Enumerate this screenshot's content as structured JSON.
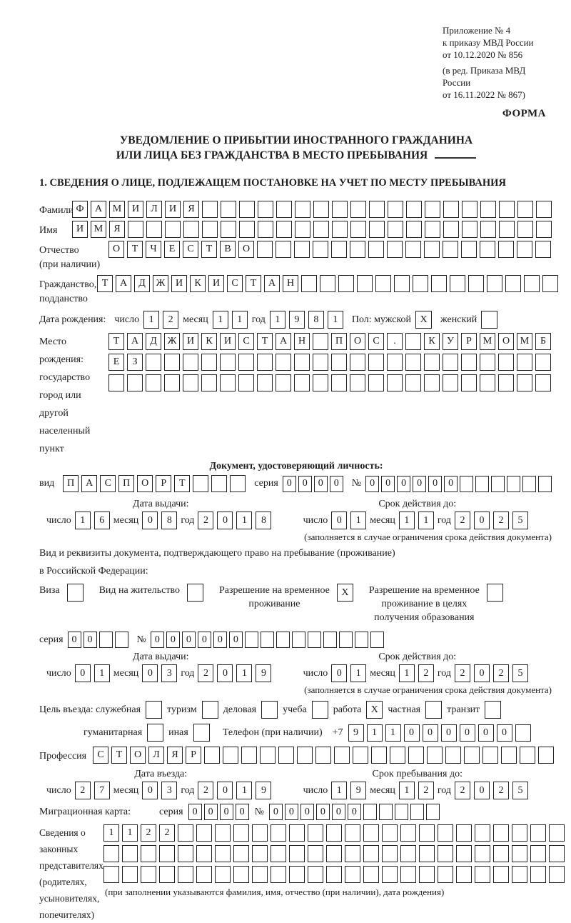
{
  "header": {
    "line1": "Приложение № 4",
    "line2": "к приказу МВД России",
    "line3": "от 10.12.2020 № 856",
    "line4": "(в ред. Приказа МВД России",
    "line5": "от 16.11.2022 № 867)",
    "form_label": "ФОРМА"
  },
  "title": {
    "line1": "УВЕДОМЛЕНИЕ О ПРИБЫТИИ ИНОСТРАННОГО ГРАЖДАНИНА",
    "line2": "ИЛИ ЛИЦА БЕЗ ГРАЖДАНСТВА В МЕСТО ПРЕБЫВАНИЯ"
  },
  "section1": {
    "heading": "1. СВЕДЕНИЯ О ЛИЦЕ, ПОДЛЕЖАЩЕМ ПОСТАНОВКЕ НА УЧЕТ ПО МЕСТУ ПРЕБЫВАНИЯ"
  },
  "labels": {
    "chislo": "число",
    "mesyats": "месяц",
    "god": "год",
    "seriya": "серия",
    "nomer": "№",
    "data_vydachi": "Дата выдачи:",
    "srok_do": "Срок действия до:",
    "note_ogranichenie": "(заполняется в случае ограничения срока действия документа)"
  },
  "person": {
    "surname_label": "Фамилия",
    "surname": {
      "v": "ФАМИЛИЯ",
      "n": 26
    },
    "name_label": "Имя",
    "name": {
      "v": "ИМЯ",
      "n": 26
    },
    "patronymic_label": "Отчество",
    "patronymic_note": "(при наличии)",
    "patronymic": {
      "v": "ОТЧЕСТВО",
      "n": 24
    },
    "citizenship_label1": "Гражданство,",
    "citizenship_label2": "подданство",
    "citizenship": {
      "v": "ТАДЖИКИСТАН",
      "n": 25
    },
    "birth_label": "Дата рождения:",
    "birth_day": {
      "v": "12",
      "n": 2
    },
    "birth_month": {
      "v": "11",
      "n": 2
    },
    "birth_year": {
      "v": "1981",
      "n": 4
    },
    "sex_male_label": "Пол: мужской",
    "sex_female_label": "женский",
    "checks": {
      "male": "X",
      "female": ""
    },
    "birthplace_labels": [
      "Место рождения:",
      "государство",
      "город или другой",
      "населенный пункт"
    ],
    "birthplace_row1": {
      "v": "ТАДЖИКИСТАН ПОС. КУРМОМБ",
      "n": 24
    },
    "birthplace_row2": {
      "v": "ЕЗ",
      "n": 24
    },
    "birthplace_row3": {
      "v": "",
      "n": 24
    }
  },
  "identity_doc": {
    "heading": "Документ, удостоверяющий личность:",
    "vid_label": "вид",
    "type": {
      "v": "ПАСПОРТ",
      "n": 10
    },
    "series": {
      "v": "0000",
      "n": 4
    },
    "number": {
      "v": "000000",
      "n": 12
    },
    "issue": {
      "day": {
        "v": "16",
        "n": 2
      },
      "month": {
        "v": "08",
        "n": 2
      },
      "year": {
        "v": "2018",
        "n": 4
      }
    },
    "expiry": {
      "day": {
        "v": "01",
        "n": 2
      },
      "month": {
        "v": "11",
        "n": 2
      },
      "year": {
        "v": "2025",
        "n": 4
      }
    }
  },
  "permit_doc": {
    "intro_line1": "Вид и реквизиты документа, подтверждающего право на пребывание (проживание)",
    "intro_line2": "в Российской Федерации:",
    "visa_label": "Виза",
    "vnz_label": "Вид на жительство",
    "rvp_line1": "Разрешение на временное",
    "rvp_line2": "проживание",
    "rvp_edu_line1": "Разрешение на временное",
    "rvp_edu_line2": "проживание в целях",
    "rvp_edu_line3": "получения образования",
    "checks": {
      "visa": "",
      "vnz": "",
      "rvp": "X",
      "rvp_edu": ""
    },
    "series": {
      "v": "00",
      "n": 4
    },
    "number": {
      "v": "000000",
      "n": 15
    },
    "issue": {
      "day": {
        "v": "01",
        "n": 2
      },
      "month": {
        "v": "03",
        "n": 2
      },
      "year": {
        "v": "2019",
        "n": 4
      }
    },
    "expiry": {
      "day": {
        "v": "01",
        "n": 2
      },
      "month": {
        "v": "12",
        "n": 2
      },
      "year": {
        "v": "2025",
        "n": 4
      }
    }
  },
  "visit": {
    "purpose_label": "Цель въезда: служебная",
    "opt_tourism": "туризм",
    "opt_business": "деловая",
    "opt_study": "учеба",
    "opt_work": "работа",
    "opt_private": "частная",
    "opt_transit": "транзит",
    "opt_humanitarian": "гуманитарная",
    "opt_other": "иная",
    "checks": {
      "official": "",
      "tourism": "",
      "business": "",
      "study": "",
      "work": "X",
      "private": "",
      "transit": "",
      "humanitarian": "",
      "other": ""
    },
    "phone_label": "Телефон (при наличии)",
    "phone_prefix": "+7",
    "phone": {
      "v": "911000000",
      "n": 10
    },
    "profession_label": "Профессия",
    "profession": {
      "v": "СТОЛЯР",
      "n": 25
    }
  },
  "entry": {
    "entry_label": "Дата въезда:",
    "stay_label": "Срок пребывания до:",
    "entry_date": {
      "day": {
        "v": "27",
        "n": 2
      },
      "month": {
        "v": "03",
        "n": 2
      },
      "year": {
        "v": "2019",
        "n": 4
      }
    },
    "stay_until": {
      "day": {
        "v": "19",
        "n": 2
      },
      "month": {
        "v": "12",
        "n": 2
      },
      "year": {
        "v": "2025",
        "n": 4
      }
    }
  },
  "migration": {
    "label": "Миграционная карта:",
    "series": {
      "v": "0000",
      "n": 4
    },
    "number": {
      "v": "000000",
      "n": 11
    }
  },
  "representatives": {
    "labels": [
      "Сведения о",
      "законных",
      "представителях",
      "(родителях,",
      "усыновителях,",
      "попечителях)"
    ],
    "row1": {
      "v": "1122",
      "n": 25
    },
    "row2": {
      "v": "",
      "n": 25
    },
    "row3": {
      "v": "",
      "n": 25
    },
    "note": "(при заполнении указываются фамилия, имя, отчество (при наличии), дата рождения)"
  }
}
